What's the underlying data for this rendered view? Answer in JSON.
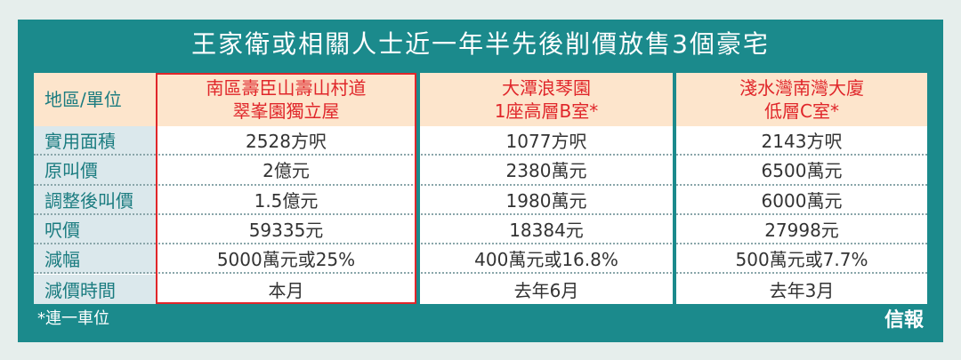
{
  "title": "王家衛或相關人士近一年半先後削價放售3個豪宅",
  "table": {
    "header": [
      "地區/單位",
      [
        "南區壽臣山壽山村道",
        "翠峯園獨立屋"
      ],
      [
        "大潭浪琴園",
        "1座高層B室*"
      ],
      [
        "淺水灣南灣大廈",
        "低層C室*"
      ]
    ],
    "rows": [
      [
        "實用面積",
        "2528方呎",
        "1077方呎",
        "2143方呎"
      ],
      [
        "原叫價",
        "2億元",
        "2380萬元",
        "6500萬元"
      ],
      [
        "調整後叫價",
        "1.5億元",
        "1980萬元",
        "6000萬元"
      ],
      [
        "呎價",
        "59335元",
        "18384元",
        "27998元"
      ],
      [
        "減幅",
        "5000萬元或25%",
        "400萬元或16.8%",
        "500萬元或7.7%"
      ],
      [
        "減價時間",
        "本月",
        "去年6月",
        "去年3月"
      ]
    ]
  },
  "footnote": "*連一車位",
  "logo": "信報"
}
